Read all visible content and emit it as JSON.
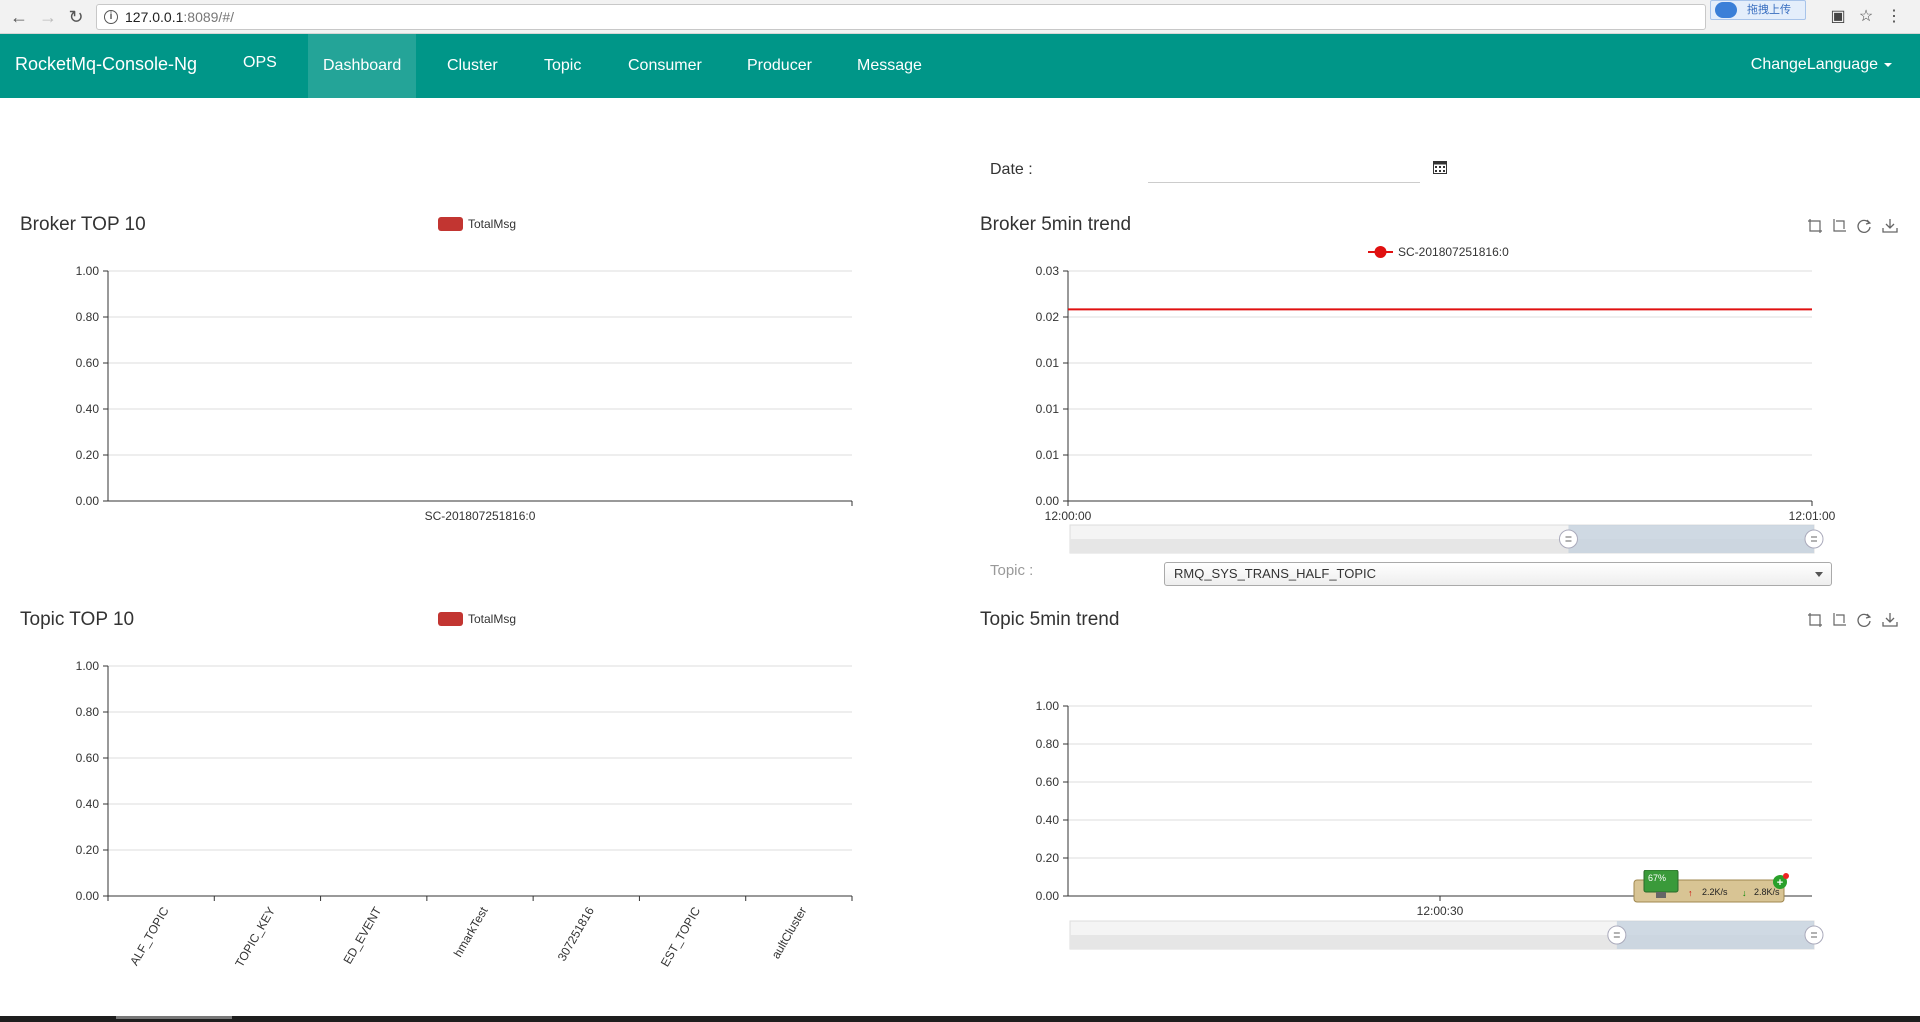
{
  "browser": {
    "url_host": "127.0.0.1",
    "url_rest": ":8089/#/",
    "extension_label": "拖拽上传"
  },
  "navbar": {
    "brand": "RocketMq-Console-Ng",
    "items": [
      {
        "label": "OPS",
        "active": false
      },
      {
        "label": "Dashboard",
        "active": true
      },
      {
        "label": "Cluster",
        "active": false
      },
      {
        "label": "Topic",
        "active": false
      },
      {
        "label": "Consumer",
        "active": false
      },
      {
        "label": "Producer",
        "active": false
      },
      {
        "label": "Message",
        "active": false
      }
    ],
    "language": "ChangeLanguage"
  },
  "filter": {
    "date_label": "Date :",
    "date_value": "",
    "topic_label": "Topic :",
    "topic_selected": "RMQ_SYS_TRANS_HALF_TOPIC"
  },
  "panels": {
    "broker_top": {
      "title": "Broker TOP 10"
    },
    "broker_trend": {
      "title": "Broker 5min trend"
    },
    "topic_top": {
      "title": "Topic TOP 10"
    },
    "topic_trend": {
      "title": "Topic 5min trend"
    }
  },
  "net_widget": {
    "cpu": "67%",
    "upload": "2.2K/s",
    "download": "2.8K/s"
  },
  "colors": {
    "navbar": "#009688",
    "series_red": "#c23531",
    "line_red": "#e01010"
  },
  "chart_data": [
    {
      "id": "broker_top",
      "type": "bar",
      "legend": [
        "TotalMsg"
      ],
      "categories": [
        "SC-201807251816:0"
      ],
      "series": [
        {
          "name": "TotalMsg",
          "values": [
            0
          ]
        }
      ],
      "ylim": [
        0,
        1
      ],
      "yticks": [
        "0.00",
        "0.20",
        "0.40",
        "0.60",
        "0.80",
        "1.00"
      ],
      "grid": true
    },
    {
      "id": "broker_trend",
      "type": "line",
      "legend": [
        "SC-201807251816:0"
      ],
      "x": [
        "12:00:00",
        "12:01:00"
      ],
      "series": [
        {
          "name": "SC-201807251816:0",
          "values": [
            0.025,
            0.025
          ]
        }
      ],
      "ylim": [
        0,
        0.03
      ],
      "yticks": [
        "0.00",
        "0.01",
        "0.01",
        "0.01",
        "0.02",
        "0.03"
      ],
      "xticks": [
        "12:00:00",
        "12:01:00"
      ],
      "grid": true,
      "toolbox": [
        "zoom",
        "zoom-reset",
        "restore",
        "save-image"
      ]
    },
    {
      "id": "topic_top",
      "type": "bar",
      "legend": [
        "TotalMsg"
      ],
      "categories": [
        "ALF_TOPIC",
        "TOPIC_KEY",
        "ED_EVENT",
        "hmarkTest",
        "307251816",
        "EST_TOPIC",
        "aultCluster"
      ],
      "series": [
        {
          "name": "TotalMsg",
          "values": [
            0,
            0,
            0,
            0,
            0,
            0,
            0
          ]
        }
      ],
      "ylim": [
        0,
        1
      ],
      "yticks": [
        "0.00",
        "0.20",
        "0.40",
        "0.60",
        "0.80",
        "1.00"
      ],
      "grid": true
    },
    {
      "id": "topic_trend",
      "type": "line",
      "legend": [],
      "x": [
        "12:00:30"
      ],
      "series": [],
      "ylim": [
        0,
        1
      ],
      "yticks": [
        "0.00",
        "0.20",
        "0.40",
        "0.60",
        "0.80",
        "1.00"
      ],
      "xticks": [
        "12:00:30"
      ],
      "grid": true,
      "toolbox": [
        "zoom",
        "zoom-reset",
        "restore",
        "save-image"
      ]
    }
  ]
}
